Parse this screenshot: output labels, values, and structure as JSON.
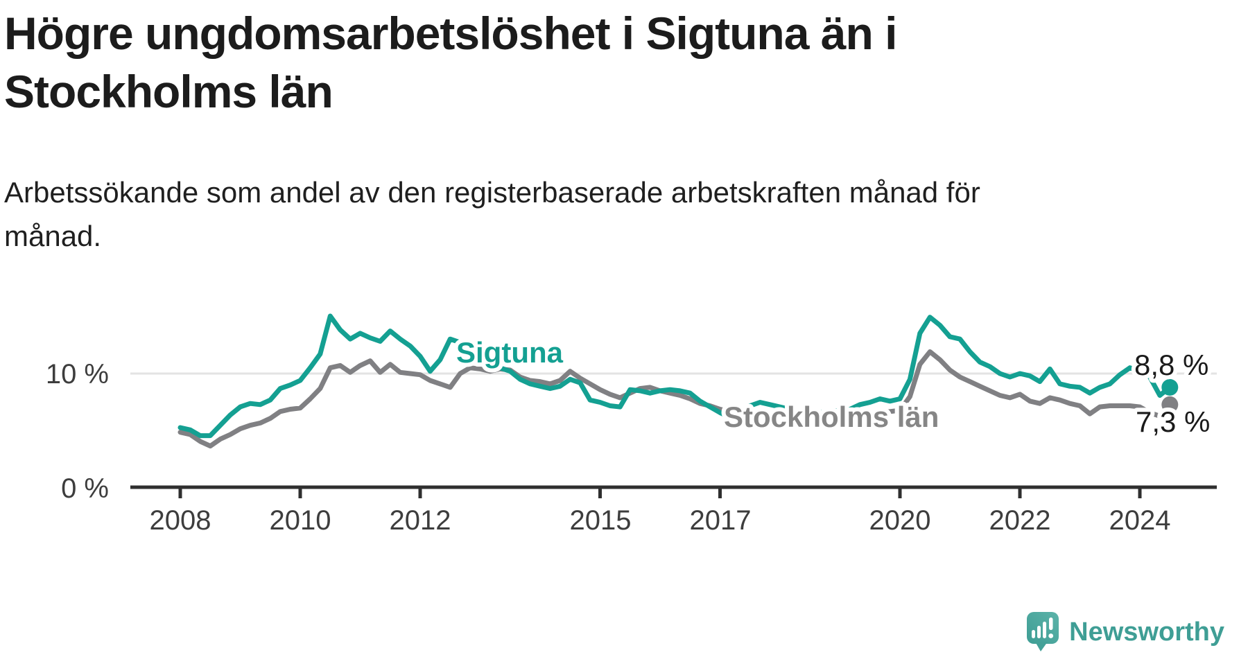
{
  "title": {
    "line1": "Högre ungdomsarbetslöshet i Sigtuna än i",
    "line2": "Stockholms län"
  },
  "subtitle": {
    "line1": "Arbetssökande som andel av den registerbaserade arbetskraften månad för",
    "line2": "månad."
  },
  "branding": {
    "name": "Newsworthy",
    "logo_icon": "speech-bubble-bar-chart-icon",
    "icon_color": "#45a49b",
    "text_color": "#3f9e95"
  },
  "chart_data": {
    "type": "line",
    "x_unit": "month",
    "x_start": "2008-01",
    "x_end": "2024-06",
    "points_per_year": 6,
    "grid": "single horizontal gridline at 10 %",
    "legend_position": "inline labels on lines, value labels at line ends",
    "ylim": [
      0,
      16
    ],
    "y_tick_labels": [
      "0 %",
      "10 %"
    ],
    "y_tick_values": [
      0,
      10
    ],
    "x_tick_labels": [
      "2008",
      "2010",
      "2012",
      "2015",
      "2017",
      "2020",
      "2022",
      "2024"
    ],
    "colors": {
      "sigtuna": "#14a092",
      "stockholm": "#808083",
      "gridline": "#e3e3e3",
      "axis": "#2f2f2f"
    },
    "series": [
      {
        "name": "Stockholms län",
        "color": "#808083",
        "label_color": "#868686",
        "end_value": 7.3,
        "end_label": "7,3 %",
        "values": [
          4.9,
          4.7,
          4.1,
          3.7,
          4.3,
          4.7,
          5.2,
          5.5,
          5.7,
          6.1,
          6.7,
          6.9,
          7.0,
          7.8,
          8.7,
          10.5,
          10.7,
          10.1,
          10.7,
          11.1,
          10.1,
          10.8,
          10.1,
          10.0,
          9.9,
          9.4,
          9.1,
          8.8,
          10.0,
          10.5,
          10.4,
          10.2,
          10.4,
          10.3,
          9.7,
          9.4,
          9.3,
          9.1,
          9.4,
          10.2,
          9.6,
          9.1,
          8.6,
          8.2,
          7.9,
          8.3,
          8.7,
          8.8,
          8.5,
          8.3,
          8.1,
          7.8,
          7.4,
          7.2,
          6.9,
          6.7,
          6.5,
          6.4,
          6.3,
          6.2,
          6.1,
          6.0,
          6.0,
          5.9,
          6.0,
          6.1,
          6.2,
          6.3,
          6.4,
          6.5,
          6.6,
          6.7,
          6.8,
          8.0,
          10.8,
          11.9,
          11.2,
          10.3,
          9.7,
          9.3,
          8.9,
          8.5,
          8.1,
          7.9,
          8.2,
          7.6,
          7.4,
          7.9,
          7.7,
          7.4,
          7.2,
          6.5,
          7.1,
          7.2,
          7.2,
          7.2,
          7.1,
          6.6,
          6.3,
          7.3
        ]
      },
      {
        "name": "Sigtuna",
        "color": "#14a092",
        "label_color": "#14a092",
        "end_value": 8.8,
        "end_label": "8,8 %",
        "values": [
          5.3,
          5.1,
          4.6,
          4.6,
          5.5,
          6.4,
          7.1,
          7.4,
          7.3,
          7.7,
          8.7,
          9.0,
          9.4,
          10.5,
          11.7,
          15.0,
          13.8,
          13.0,
          13.5,
          13.1,
          12.8,
          13.7,
          13.0,
          12.4,
          11.5,
          10.2,
          11.2,
          13.0,
          12.7,
          12.2,
          11.7,
          11.1,
          10.5,
          10.2,
          9.5,
          9.1,
          8.9,
          8.7,
          8.9,
          9.5,
          9.2,
          7.7,
          7.5,
          7.2,
          7.1,
          8.6,
          8.5,
          8.3,
          8.5,
          8.6,
          8.5,
          8.3,
          7.6,
          7.1,
          6.6,
          6.2,
          6.0,
          7.2,
          7.5,
          7.3,
          7.1,
          6.9,
          6.7,
          6.6,
          6.6,
          6.7,
          6.8,
          6.9,
          7.3,
          7.5,
          7.8,
          7.6,
          7.8,
          9.5,
          13.5,
          14.9,
          14.2,
          13.2,
          13.0,
          11.9,
          11.0,
          10.6,
          10.0,
          9.7,
          10.0,
          9.8,
          9.3,
          10.4,
          9.1,
          8.9,
          8.8,
          8.3,
          8.8,
          9.1,
          9.9,
          10.5,
          10.2,
          9.7,
          8.1,
          8.8
        ]
      }
    ]
  }
}
